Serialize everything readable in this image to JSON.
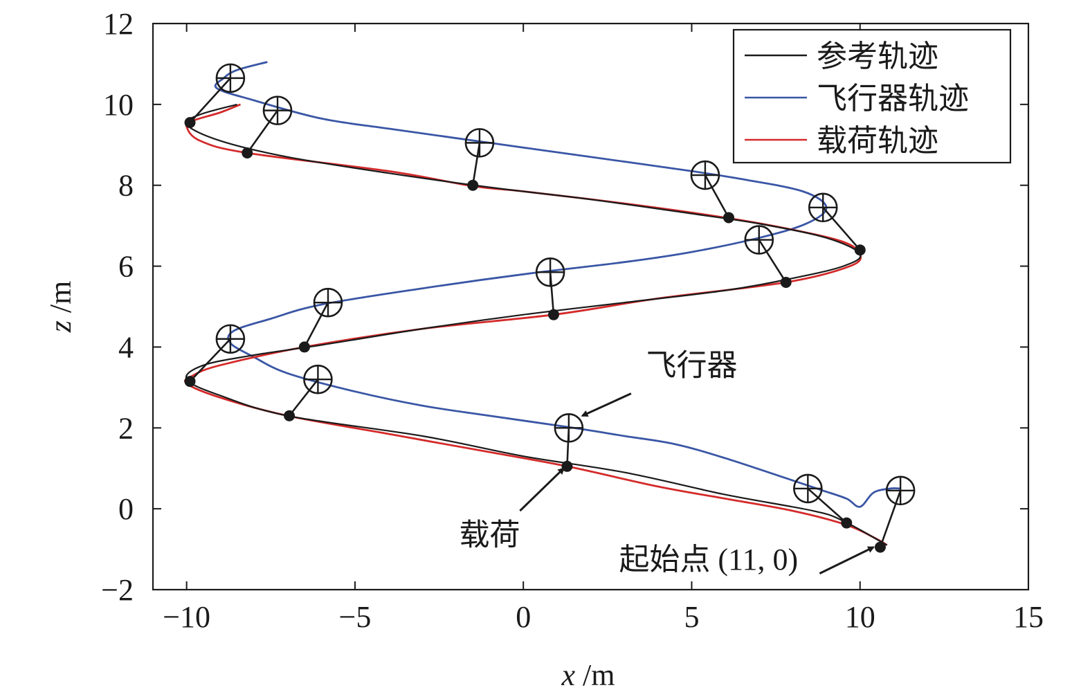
{
  "chart_data": {
    "type": "line",
    "title": "",
    "xlabel": {
      "var": "x",
      "unit": " /m"
    },
    "ylabel": {
      "var": "z",
      "unit": " /m"
    },
    "xlim": [
      -11,
      15
    ],
    "ylim": [
      -2,
      12
    ],
    "xticks": [
      -10,
      -5,
      0,
      5,
      10,
      15
    ],
    "yticks": [
      -2,
      0,
      2,
      4,
      6,
      8,
      10,
      12
    ],
    "xtick_labels": [
      "−10",
      "−5",
      "0",
      "5",
      "10",
      "15"
    ],
    "ytick_labels": [
      "−2",
      "0",
      "2",
      "4",
      "6",
      "8",
      "10",
      "12"
    ],
    "grid": false,
    "legend_position": "top-right",
    "series": [
      {
        "name": "参考轨迹",
        "color": "#1a1a1a",
        "points": [
          [
            10.8,
            -0.9
          ],
          [
            9.5,
            -0.3
          ],
          [
            8.6,
            -0.05
          ],
          [
            6,
            0.35
          ],
          [
            3,
            0.9
          ],
          [
            0,
            1.3
          ],
          [
            -3,
            1.8
          ],
          [
            -7,
            2.3
          ],
          [
            -9,
            2.8
          ],
          [
            -10,
            3.2
          ],
          [
            -9.5,
            3.55
          ],
          [
            -8,
            3.8
          ],
          [
            -6,
            4.05
          ],
          [
            -3,
            4.45
          ],
          [
            0,
            4.8
          ],
          [
            3,
            5.1
          ],
          [
            6,
            5.4
          ],
          [
            8,
            5.7
          ],
          [
            9.5,
            6
          ],
          [
            10,
            6.3
          ],
          [
            9,
            6.7
          ],
          [
            7,
            7.05
          ],
          [
            5,
            7.3
          ],
          [
            2,
            7.65
          ],
          [
            -1,
            7.95
          ],
          [
            -4,
            8.3
          ],
          [
            -7,
            8.7
          ],
          [
            -9,
            9.1
          ],
          [
            -10,
            9.5
          ],
          [
            -9.6,
            9.75
          ],
          [
            -8.5,
            10
          ]
        ]
      },
      {
        "name": "飞行器轨迹",
        "color": "#3a56a5",
        "points": [
          [
            11.2,
            0.5
          ],
          [
            10.9,
            0.5
          ],
          [
            10.4,
            0.4
          ],
          [
            10,
            0.05
          ],
          [
            9.6,
            0.25
          ],
          [
            8.9,
            0.45
          ],
          [
            8,
            0.7
          ],
          [
            6,
            1.25
          ],
          [
            4.5,
            1.6
          ],
          [
            3,
            1.8
          ],
          [
            1.5,
            2
          ],
          [
            -1,
            2.3
          ],
          [
            -3,
            2.55
          ],
          [
            -5,
            2.9
          ],
          [
            -7,
            3.35
          ],
          [
            -8,
            3.75
          ],
          [
            -8.7,
            4.1
          ],
          [
            -8.6,
            4.4
          ],
          [
            -7.5,
            4.7
          ],
          [
            -6,
            5.05
          ],
          [
            -3,
            5.45
          ],
          [
            0,
            5.8
          ],
          [
            3,
            6.1
          ],
          [
            5,
            6.35
          ],
          [
            7,
            6.7
          ],
          [
            8.4,
            7.05
          ],
          [
            9,
            7.45
          ],
          [
            8.3,
            7.85
          ],
          [
            6.5,
            8.15
          ],
          [
            5,
            8.35
          ],
          [
            2,
            8.7
          ],
          [
            -1,
            9.05
          ],
          [
            -4,
            9.4
          ],
          [
            -6,
            9.65
          ],
          [
            -8,
            10.1
          ],
          [
            -9.1,
            10.4
          ],
          [
            -8.9,
            10.65
          ],
          [
            -8.5,
            10.85
          ],
          [
            -7.6,
            11.05
          ]
        ]
      },
      {
        "name": "载荷轨迹",
        "color": "#d42a2a",
        "points": [
          [
            10.8,
            -0.9
          ],
          [
            10.5,
            -0.75
          ],
          [
            9.6,
            -0.4
          ],
          [
            8,
            -0.05
          ],
          [
            6,
            0.25
          ],
          [
            4,
            0.55
          ],
          [
            1.3,
            1.05
          ],
          [
            -1,
            1.4
          ],
          [
            -4,
            1.85
          ],
          [
            -7,
            2.3
          ],
          [
            -9,
            2.75
          ],
          [
            -10,
            3.1
          ],
          [
            -9.8,
            3.3
          ],
          [
            -9,
            3.55
          ],
          [
            -6.5,
            4
          ],
          [
            -3,
            4.45
          ],
          [
            0.9,
            4.8
          ],
          [
            4,
            5.2
          ],
          [
            7.8,
            5.6
          ],
          [
            9.7,
            6
          ],
          [
            10,
            6.3
          ],
          [
            9.5,
            6.6
          ],
          [
            8,
            6.9
          ],
          [
            6,
            7.2
          ],
          [
            3,
            7.55
          ],
          [
            0,
            7.85
          ],
          [
            -1.5,
            7.98
          ],
          [
            -4,
            8.35
          ],
          [
            -8.2,
            8.8
          ],
          [
            -9.6,
            9.1
          ],
          [
            -10,
            9.45
          ],
          [
            -9.8,
            9.6
          ],
          [
            -9,
            9.8
          ],
          [
            -8.4,
            10
          ]
        ]
      }
    ],
    "vehicles": [
      {
        "craft": [
          11.2,
          0.45
        ],
        "payload": [
          10.6,
          -0.95
        ]
      },
      {
        "craft": [
          8.45,
          0.5
        ],
        "payload": [
          9.6,
          -0.35
        ]
      },
      {
        "craft": [
          1.35,
          2.0
        ],
        "payload": [
          1.3,
          1.05
        ]
      },
      {
        "craft": [
          -6.1,
          3.2
        ],
        "payload": [
          -6.95,
          2.3
        ]
      },
      {
        "craft": [
          -8.7,
          4.2
        ],
        "payload": [
          -9.9,
          3.15
        ]
      },
      {
        "craft": [
          -5.8,
          5.1
        ],
        "payload": [
          -6.5,
          4.0
        ]
      },
      {
        "craft": [
          0.8,
          5.85
        ],
        "payload": [
          0.9,
          4.8
        ]
      },
      {
        "craft": [
          7.0,
          6.65
        ],
        "payload": [
          7.8,
          5.6
        ]
      },
      {
        "craft": [
          8.9,
          7.45
        ],
        "payload": [
          10.0,
          6.4
        ]
      },
      {
        "craft": [
          5.4,
          8.25
        ],
        "payload": [
          6.1,
          7.2
        ]
      },
      {
        "craft": [
          -1.3,
          9.05
        ],
        "payload": [
          -1.5,
          8.0
        ]
      },
      {
        "craft": [
          -7.3,
          9.85
        ],
        "payload": [
          -8.2,
          8.8
        ]
      },
      {
        "craft": [
          -8.7,
          10.65
        ],
        "payload": [
          -9.9,
          9.55
        ]
      }
    ],
    "annotations": [
      {
        "text": "飞行器",
        "at": [
          5.0,
          3.3
        ],
        "arrow_from": [
          3.2,
          2.85
        ],
        "arrow_to": [
          1.75,
          2.3
        ],
        "anchor": "middle"
      },
      {
        "text": "载荷",
        "at": [
          -1.0,
          -0.9
        ],
        "arrow_from": [
          -0.1,
          -0.05
        ],
        "arrow_to": [
          1.2,
          1.0
        ],
        "anchor": "middle"
      },
      {
        "text": "起始点 (11, 0)",
        "at": [
          5.5,
          -1.5
        ],
        "arrow_from": [
          8.8,
          -1.6
        ],
        "arrow_to": [
          10.4,
          -0.95
        ],
        "anchor": "middle"
      }
    ]
  }
}
